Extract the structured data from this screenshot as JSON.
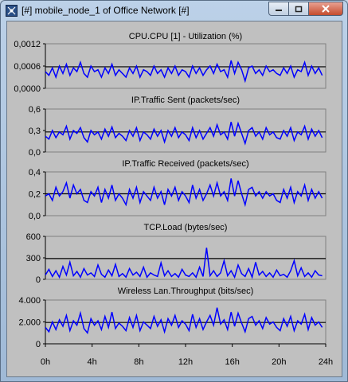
{
  "window": {
    "title": "[#] mobile_node_1 of Office Network [#]",
    "icon": "network-app-icon",
    "controls": {
      "minimize_icon": "minimize-icon",
      "maximize_icon": "maximize-icon",
      "close_icon": "close-icon"
    }
  },
  "colors": {
    "background": "#c0c0c0",
    "series": "#0000ff",
    "reference_line": "#000000",
    "plot_border": "#808080"
  },
  "x_axis": {
    "ticks": [
      "0h",
      "4h",
      "8h",
      "12h",
      "16h",
      "20h",
      "24h"
    ],
    "range": [
      0,
      24
    ]
  },
  "chart_data": [
    {
      "type": "line",
      "title": "CPU.CPU [1] - Utilization (%)",
      "yticks": [
        "0,0012",
        "0,0006",
        "0,0000"
      ],
      "ylim": [
        0,
        0.0012
      ],
      "reference": 0.00058,
      "x": [
        0.0,
        0.3,
        0.6,
        0.9,
        1.2,
        1.5,
        1.8,
        2.1,
        2.4,
        2.7,
        3.0,
        3.3,
        3.6,
        3.9,
        4.2,
        4.5,
        4.8,
        5.1,
        5.4,
        5.7,
        6.0,
        6.3,
        6.6,
        6.9,
        7.2,
        7.5,
        7.8,
        8.1,
        8.4,
        8.7,
        9.0,
        9.3,
        9.6,
        9.9,
        10.2,
        10.5,
        10.8,
        11.1,
        11.4,
        11.7,
        12.0,
        12.3,
        12.6,
        12.9,
        13.2,
        13.5,
        13.8,
        14.1,
        14.4,
        14.7,
        15.0,
        15.3,
        15.6,
        15.9,
        16.2,
        16.5,
        16.8,
        17.1,
        17.4,
        17.7,
        18.0,
        18.3,
        18.6,
        18.9,
        19.2,
        19.5,
        19.8,
        20.1,
        20.4,
        20.7,
        21.0,
        21.3,
        21.6,
        21.9,
        22.2,
        22.5,
        22.8,
        23.1,
        23.4,
        23.7
      ],
      "values": [
        0.00045,
        0.00035,
        0.00055,
        0.0003,
        0.0006,
        0.0004,
        0.00065,
        0.00035,
        0.00055,
        0.00045,
        0.0007,
        0.0004,
        0.0003,
        0.0006,
        0.00045,
        0.0005,
        0.0003,
        0.00055,
        0.0004,
        0.00065,
        0.00035,
        0.0005,
        0.0004,
        0.0003,
        0.00055,
        0.0004,
        0.0006,
        0.0003,
        0.0005,
        0.00045,
        0.00035,
        0.0006,
        0.0004,
        0.0005,
        0.0003,
        0.00055,
        0.0004,
        0.0006,
        0.00035,
        0.0005,
        0.00045,
        0.0003,
        0.0006,
        0.0004,
        0.00055,
        0.00035,
        0.0005,
        0.0006,
        0.0004,
        0.00065,
        0.00045,
        0.0005,
        0.0003,
        0.00075,
        0.0004,
        0.0007,
        0.0005,
        0.0002,
        0.00055,
        0.0006,
        0.0004,
        0.0005,
        0.00035,
        0.0006,
        0.00045,
        0.0005,
        0.0004,
        0.00035,
        0.00055,
        0.0004,
        0.0006,
        0.0003,
        0.0005,
        0.00045,
        0.0007,
        0.00035,
        0.0006,
        0.0004,
        0.00055,
        0.00035
      ]
    },
    {
      "type": "line",
      "title": "IP.Traffic Sent (packets/sec)",
      "yticks": [
        "0,6",
        "0,3",
        "0,0"
      ],
      "ylim": [
        0,
        0.6
      ],
      "reference": 0.28,
      "x": [
        0.0,
        0.3,
        0.6,
        0.9,
        1.2,
        1.5,
        1.8,
        2.1,
        2.4,
        2.7,
        3.0,
        3.3,
        3.6,
        3.9,
        4.2,
        4.5,
        4.8,
        5.1,
        5.4,
        5.7,
        6.0,
        6.3,
        6.6,
        6.9,
        7.2,
        7.5,
        7.8,
        8.1,
        8.4,
        8.7,
        9.0,
        9.3,
        9.6,
        9.9,
        10.2,
        10.5,
        10.8,
        11.1,
        11.4,
        11.7,
        12.0,
        12.3,
        12.6,
        12.9,
        13.2,
        13.5,
        13.8,
        14.1,
        14.4,
        14.7,
        15.0,
        15.3,
        15.6,
        15.9,
        16.2,
        16.5,
        16.8,
        17.1,
        17.4,
        17.7,
        18.0,
        18.3,
        18.6,
        18.9,
        19.2,
        19.5,
        19.8,
        20.1,
        20.4,
        20.7,
        21.0,
        21.3,
        21.6,
        21.9,
        22.2,
        22.5,
        22.8,
        23.1,
        23.4,
        23.7
      ],
      "values": [
        0.22,
        0.18,
        0.3,
        0.2,
        0.28,
        0.24,
        0.36,
        0.18,
        0.3,
        0.26,
        0.34,
        0.2,
        0.14,
        0.3,
        0.24,
        0.28,
        0.18,
        0.32,
        0.22,
        0.35,
        0.2,
        0.26,
        0.22,
        0.16,
        0.3,
        0.22,
        0.34,
        0.16,
        0.28,
        0.24,
        0.18,
        0.32,
        0.22,
        0.3,
        0.14,
        0.3,
        0.22,
        0.34,
        0.2,
        0.28,
        0.24,
        0.16,
        0.34,
        0.2,
        0.3,
        0.18,
        0.26,
        0.34,
        0.22,
        0.38,
        0.24,
        0.28,
        0.18,
        0.42,
        0.22,
        0.4,
        0.26,
        0.12,
        0.3,
        0.34,
        0.22,
        0.28,
        0.18,
        0.34,
        0.24,
        0.28,
        0.2,
        0.18,
        0.3,
        0.22,
        0.34,
        0.16,
        0.28,
        0.24,
        0.36,
        0.18,
        0.32,
        0.22,
        0.3,
        0.2
      ]
    },
    {
      "type": "line",
      "title": "IP.Traffic Received (packets/sec)",
      "yticks": [
        "0,4",
        "0,2",
        "0,0"
      ],
      "ylim": [
        0,
        0.4
      ],
      "reference": 0.2,
      "x": [
        0.0,
        0.3,
        0.6,
        0.9,
        1.2,
        1.5,
        1.8,
        2.1,
        2.4,
        2.7,
        3.0,
        3.3,
        3.6,
        3.9,
        4.2,
        4.5,
        4.8,
        5.1,
        5.4,
        5.7,
        6.0,
        6.3,
        6.6,
        6.9,
        7.2,
        7.5,
        7.8,
        8.1,
        8.4,
        8.7,
        9.0,
        9.3,
        9.6,
        9.9,
        10.2,
        10.5,
        10.8,
        11.1,
        11.4,
        11.7,
        12.0,
        12.3,
        12.6,
        12.9,
        13.2,
        13.5,
        13.8,
        14.1,
        14.4,
        14.7,
        15.0,
        15.3,
        15.6,
        15.9,
        16.2,
        16.5,
        16.8,
        17.1,
        17.4,
        17.7,
        18.0,
        18.3,
        18.6,
        18.9,
        19.2,
        19.5,
        19.8,
        20.1,
        20.4,
        20.7,
        21.0,
        21.3,
        21.6,
        21.9,
        22.2,
        22.5,
        22.8,
        23.1,
        23.4,
        23.7
      ],
      "values": [
        0.18,
        0.2,
        0.14,
        0.26,
        0.18,
        0.22,
        0.3,
        0.16,
        0.28,
        0.2,
        0.24,
        0.14,
        0.12,
        0.22,
        0.18,
        0.26,
        0.12,
        0.24,
        0.16,
        0.28,
        0.14,
        0.2,
        0.16,
        0.1,
        0.24,
        0.16,
        0.26,
        0.12,
        0.22,
        0.18,
        0.14,
        0.26,
        0.16,
        0.22,
        0.1,
        0.24,
        0.18,
        0.26,
        0.14,
        0.22,
        0.18,
        0.12,
        0.28,
        0.16,
        0.24,
        0.14,
        0.2,
        0.28,
        0.18,
        0.3,
        0.18,
        0.22,
        0.14,
        0.34,
        0.18,
        0.32,
        0.2,
        0.1,
        0.24,
        0.26,
        0.18,
        0.22,
        0.16,
        0.22,
        0.18,
        0.2,
        0.14,
        0.12,
        0.24,
        0.16,
        0.26,
        0.12,
        0.22,
        0.18,
        0.28,
        0.14,
        0.24,
        0.16,
        0.22,
        0.16
      ]
    },
    {
      "type": "line",
      "title": "TCP.Load (bytes/sec)",
      "yticks": [
        "600",
        "300",
        "0"
      ],
      "ylim": [
        0,
        600
      ],
      "reference": 290,
      "x": [
        0.0,
        0.3,
        0.6,
        0.9,
        1.2,
        1.5,
        1.8,
        2.1,
        2.4,
        2.7,
        3.0,
        3.3,
        3.6,
        3.9,
        4.2,
        4.5,
        4.8,
        5.1,
        5.4,
        5.7,
        6.0,
        6.3,
        6.6,
        6.9,
        7.2,
        7.5,
        7.8,
        8.1,
        8.4,
        8.7,
        9.0,
        9.3,
        9.6,
        9.9,
        10.2,
        10.5,
        10.8,
        11.1,
        11.4,
        11.7,
        12.0,
        12.3,
        12.6,
        12.9,
        13.2,
        13.5,
        13.8,
        14.1,
        14.4,
        14.7,
        15.0,
        15.3,
        15.6,
        15.9,
        16.2,
        16.5,
        16.8,
        17.1,
        17.4,
        17.7,
        18.0,
        18.3,
        18.6,
        18.9,
        19.2,
        19.5,
        19.8,
        20.1,
        20.4,
        20.7,
        21.0,
        21.3,
        21.6,
        21.9,
        22.2,
        22.5,
        22.8,
        23.1,
        23.4,
        23.7
      ],
      "values": [
        60,
        140,
        40,
        120,
        30,
        180,
        60,
        240,
        50,
        110,
        30,
        150,
        60,
        90,
        40,
        200,
        70,
        30,
        130,
        50,
        210,
        40,
        80,
        30,
        150,
        60,
        100,
        40,
        170,
        30,
        90,
        60,
        40,
        230,
        50,
        120,
        40,
        80,
        30,
        140,
        60,
        40,
        90,
        30,
        170,
        40,
        440,
        50,
        120,
        40,
        90,
        260,
        50,
        120,
        30,
        200,
        80,
        40,
        150,
        30,
        240,
        60,
        110,
        40,
        90,
        30,
        130,
        50,
        70,
        30,
        120,
        260,
        50,
        160,
        40,
        90,
        30,
        120,
        60,
        50
      ]
    },
    {
      "type": "line",
      "title": "Wireless Lan.Throughput (bits/sec)",
      "yticks": [
        "4.000",
        "2.000",
        "0"
      ],
      "ylim": [
        0,
        4000
      ],
      "reference": 1950,
      "x": [
        0.0,
        0.3,
        0.6,
        0.9,
        1.2,
        1.5,
        1.8,
        2.1,
        2.4,
        2.7,
        3.0,
        3.3,
        3.6,
        3.9,
        4.2,
        4.5,
        4.8,
        5.1,
        5.4,
        5.7,
        6.0,
        6.3,
        6.6,
        6.9,
        7.2,
        7.5,
        7.8,
        8.1,
        8.4,
        8.7,
        9.0,
        9.3,
        9.6,
        9.9,
        10.2,
        10.5,
        10.8,
        11.1,
        11.4,
        11.7,
        12.0,
        12.3,
        12.6,
        12.9,
        13.2,
        13.5,
        13.8,
        14.1,
        14.4,
        14.7,
        15.0,
        15.3,
        15.6,
        15.9,
        16.2,
        16.5,
        16.8,
        17.1,
        17.4,
        17.7,
        18.0,
        18.3,
        18.6,
        18.9,
        19.2,
        19.5,
        19.8,
        20.1,
        20.4,
        20.7,
        21.0,
        21.3,
        21.6,
        21.9,
        22.2,
        22.5,
        22.8,
        23.1,
        23.4,
        23.7
      ],
      "values": [
        1500,
        1100,
        2000,
        1300,
        2200,
        1600,
        2600,
        1200,
        2100,
        1700,
        2800,
        1400,
        1000,
        2300,
        1700,
        2100,
        1300,
        2500,
        1500,
        2900,
        1400,
        1900,
        1600,
        1200,
        2400,
        1500,
        2600,
        1200,
        2000,
        1700,
        1400,
        2500,
        1600,
        2200,
        1100,
        2300,
        1700,
        2600,
        1500,
        2100,
        1800,
        1200,
        2700,
        1500,
        2300,
        1300,
        2000,
        2600,
        1700,
        3300,
        1800,
        2200,
        1300,
        2900,
        1600,
        2800,
        1900,
        1100,
        2300,
        2500,
        1700,
        2100,
        1400,
        2400,
        1800,
        2000,
        1500,
        1200,
        2300,
        1600,
        2500,
        1200,
        2100,
        1800,
        2700,
        1300,
        2400,
        1700,
        2000,
        1500
      ]
    }
  ]
}
